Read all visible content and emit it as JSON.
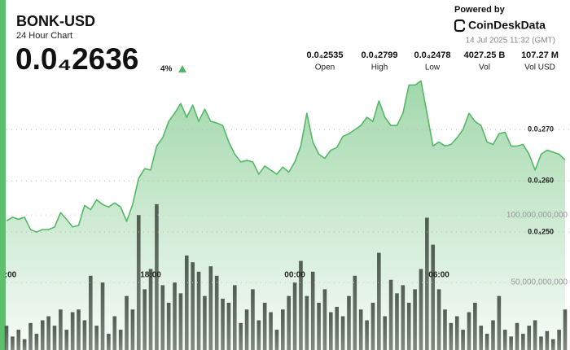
{
  "ticker": {
    "price": "0.0₄2636",
    "change": "4%",
    "stats": [
      {
        "value": "0.0₄2535",
        "label": "Open"
      },
      {
        "value": "0.0₄2799",
        "label": "High"
      },
      {
        "value": "0.0₄2478",
        "label": "Low"
      },
      {
        "value": "4027.25 B",
        "label": "Vol"
      },
      {
        "value": "107.27 M",
        "label": "Vol USD"
      }
    ],
    "powered_by": "Powered by",
    "brand": "CoinDeskData",
    "timestamp": "14 Jul 2025 11:32 (GMT)"
  },
  "chart_data": {
    "type": "line",
    "title": "BONK-USD",
    "subtitle": "24 Hour Chart",
    "categories": [
      ":00",
      null,
      null,
      null,
      null,
      null,
      null,
      null,
      null,
      null,
      null,
      null,
      null,
      null,
      null,
      null,
      null,
      null,
      null,
      null,
      null,
      null,
      null,
      null,
      "18:00",
      null,
      null,
      null,
      null,
      null,
      null,
      null,
      null,
      null,
      null,
      null,
      null,
      null,
      null,
      null,
      null,
      null,
      null,
      null,
      null,
      null,
      null,
      null,
      "00:00",
      null,
      null,
      null,
      null,
      null,
      null,
      null,
      null,
      null,
      null,
      null,
      null,
      null,
      null,
      null,
      null,
      null,
      null,
      null,
      null,
      null,
      null,
      null,
      "06:00",
      null,
      null,
      null,
      null,
      null,
      null,
      null,
      null,
      null,
      null,
      null,
      null,
      null,
      null,
      null,
      null,
      null,
      null,
      null,
      null,
      null
    ],
    "series": [
      {
        "name": "Price",
        "type": "line",
        "color": "#55b866",
        "values": [
          2.522e-05,
          2.529e-05,
          2.525e-05,
          2.529e-05,
          2.505e-05,
          2.5e-05,
          2.505e-05,
          2.505e-05,
          2.51e-05,
          2.538e-05,
          2.525e-05,
          2.51e-05,
          2.513e-05,
          2.552e-05,
          2.544e-05,
          2.563e-05,
          2.554e-05,
          2.549e-05,
          2.557e-05,
          2.549e-05,
          2.521e-05,
          2.554e-05,
          2.605e-05,
          2.624e-05,
          2.621e-05,
          2.668e-05,
          2.684e-05,
          2.716e-05,
          2.732e-05,
          2.751e-05,
          2.724e-05,
          2.748e-05,
          2.716e-05,
          2.74e-05,
          2.716e-05,
          2.713e-05,
          2.708e-05,
          2.676e-05,
          2.652e-05,
          2.637e-05,
          2.64e-05,
          2.637e-05,
          2.613e-05,
          2.629e-05,
          2.621e-05,
          2.613e-05,
          2.627e-05,
          2.617e-05,
          2.637e-05,
          2.668e-05,
          2.732e-05,
          2.676e-05,
          2.652e-05,
          2.644e-05,
          2.66e-05,
          2.665e-05,
          2.687e-05,
          2.692e-05,
          2.7e-05,
          2.708e-05,
          2.724e-05,
          2.716e-05,
          2.756e-05,
          2.724e-05,
          2.708e-05,
          2.708e-05,
          2.732e-05,
          2.787e-05,
          2.787e-05,
          2.795e-05,
          2.732e-05,
          2.668e-05,
          2.676e-05,
          2.668e-05,
          2.671e-05,
          2.684e-05,
          2.7e-05,
          2.732e-05,
          2.716e-05,
          2.708e-05,
          2.676e-05,
          2.671e-05,
          2.692e-05,
          2.695e-05,
          2.668e-05,
          2.668e-05,
          2.671e-05,
          2.652e-05,
          2.621e-05,
          2.652e-05,
          2.66e-05,
          2.656e-05,
          2.652e-05,
          2.641e-05
        ]
      },
      {
        "name": "Volume",
        "type": "bar",
        "axis": "y2",
        "color": "#4a564a",
        "values": [
          18000000000.0,
          10000000000.0,
          15000000000.0,
          8000000000.0,
          20000000000.0,
          12000000000.0,
          22000000000.0,
          25000000000.0,
          18000000000.0,
          30000000000.0,
          15000000000.0,
          28000000000.0,
          30000000000.0,
          22000000000.0,
          55000000000.0,
          18000000000.0,
          50000000000.0,
          12000000000.0,
          25000000000.0,
          15000000000.0,
          40000000000.0,
          30000000000.0,
          100000000000.0,
          45000000000.0,
          60000000000.0,
          108000000000.0,
          48000000000.0,
          35000000000.0,
          50000000000.0,
          42000000000.0,
          70000000000.0,
          65000000000.0,
          58000000000.0,
          40000000000.0,
          62000000000.0,
          55000000000.0,
          38000000000.0,
          35000000000.0,
          48000000000.0,
          20000000000.0,
          30000000000.0,
          45000000000.0,
          22000000000.0,
          35000000000.0,
          28000000000.0,
          15000000000.0,
          30000000000.0,
          40000000000.0,
          50000000000.0,
          66000000000.0,
          40000000000.0,
          58000000000.0,
          35000000000.0,
          45000000000.0,
          28000000000.0,
          32000000000.0,
          25000000000.0,
          40000000000.0,
          55000000000.0,
          30000000000.0,
          22000000000.0,
          35000000000.0,
          72000000000.0,
          25000000000.0,
          52000000000.0,
          42000000000.0,
          48000000000.0,
          35000000000.0,
          45000000000.0,
          60000000000.0,
          98000000000.0,
          78000000000.0,
          45000000000.0,
          30000000000.0,
          20000000000.0,
          25000000000.0,
          15000000000.0,
          28000000000.0,
          35000000000.0,
          18000000000.0,
          12000000000.0,
          22000000000.0,
          40000000000.0,
          15000000000.0,
          10000000000.0,
          20000000000.0,
          12000000000.0,
          18000000000.0,
          22000000000.0,
          10000000000.0,
          14000000000.0,
          8000000000.0,
          15000000000.0,
          30000000000.0
        ]
      }
    ],
    "ylim": [
      2.27e-05,
      2.81e-05
    ],
    "yticks": [
      {
        "value": 2.5e-05,
        "label": "0.0₄250"
      },
      {
        "value": 2.6e-05,
        "label": "0.0₄260"
      },
      {
        "value": 2.7e-05,
        "label": "0.0₄270"
      }
    ],
    "y2lim": [
      0,
      205000000000
    ],
    "y2ticks": [
      {
        "value": 50000000000,
        "label": "50,000,000,000"
      },
      {
        "value": 100000000000,
        "label": "100,000,000,000"
      }
    ],
    "grid": true
  }
}
